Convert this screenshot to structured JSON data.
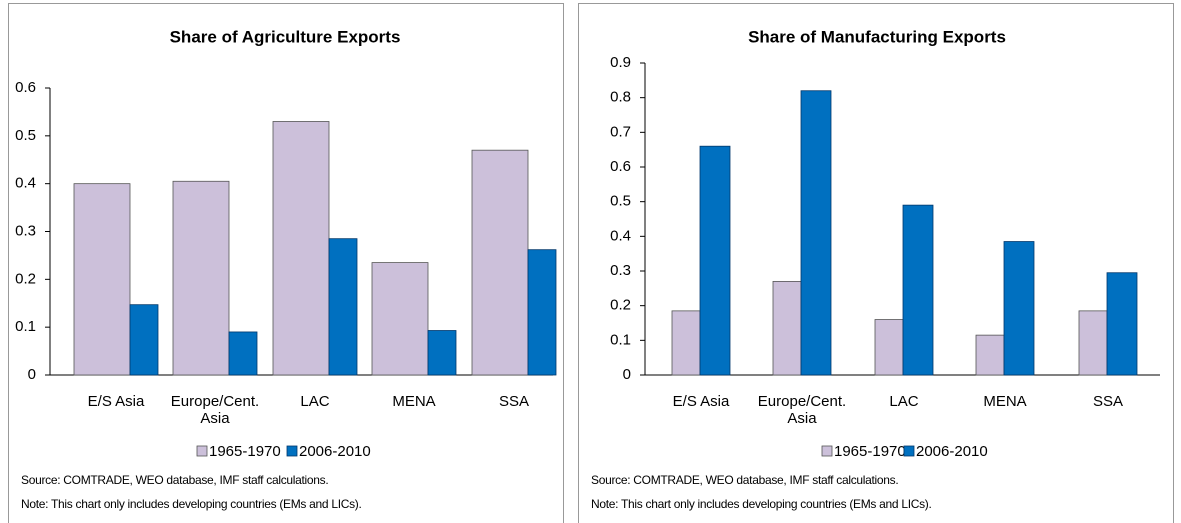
{
  "chart_data": [
    {
      "type": "bar",
      "title": "Share of Agriculture  Exports",
      "categories": [
        "E/S Asia",
        "Europe/Cent. Asia",
        "LAC",
        "MENA",
        "SSA"
      ],
      "series": [
        {
          "name": "1965-1970",
          "color": "#ccc0da",
          "values": [
            0.4,
            0.405,
            0.53,
            0.235,
            0.47
          ]
        },
        {
          "name": "2006-2010",
          "color": "#0070c0",
          "values": [
            0.147,
            0.09,
            0.285,
            0.093,
            0.262
          ]
        }
      ],
      "ylim": [
        0,
        0.6
      ],
      "yticks": [
        0,
        0.1,
        0.2,
        0.3,
        0.4,
        0.5,
        0.6
      ],
      "grid": false,
      "legend": "bottom",
      "source": "Source: COMTRADE, WEO database,  IMF staff calculations.",
      "note": "Note: This chart only includes developing countries (EMs and LICs)."
    },
    {
      "type": "bar",
      "title": "Share of Manufacturing Exports",
      "categories": [
        "E/S Asia",
        "Europe/Cent. Asia",
        "LAC",
        "MENA",
        "SSA"
      ],
      "series": [
        {
          "name": "1965-1970",
          "color": "#ccc0da",
          "values": [
            0.185,
            0.27,
            0.16,
            0.115,
            0.185
          ]
        },
        {
          "name": "2006-2010",
          "color": "#0070c0",
          "values": [
            0.66,
            0.82,
            0.49,
            0.385,
            0.295
          ]
        }
      ],
      "ylim": [
        0,
        0.9
      ],
      "yticks": [
        0,
        0.1,
        0.2,
        0.3,
        0.4,
        0.5,
        0.6,
        0.7,
        0.8,
        0.9
      ],
      "grid": false,
      "legend": "bottom",
      "source": "Source: COMTRADE, WEO database,  IMF staff calculations.",
      "note": "Note: This chart only includes developing countries (EMs and LICs)."
    }
  ]
}
